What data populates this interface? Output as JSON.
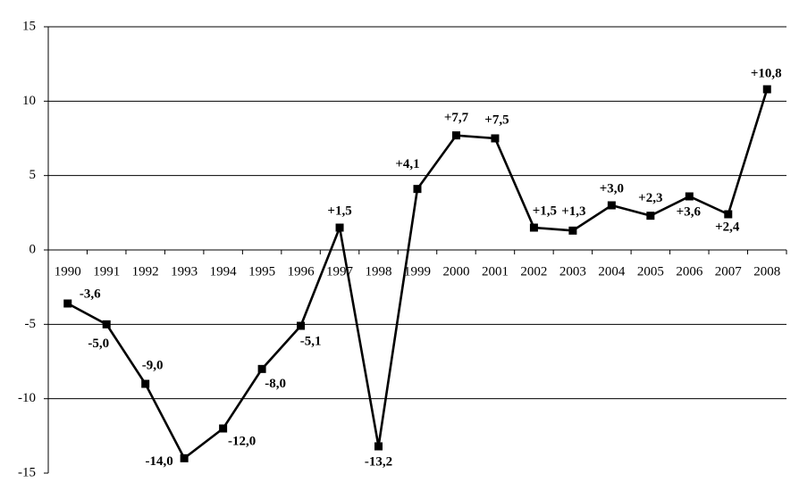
{
  "chart_data": {
    "type": "line",
    "title": "",
    "xlabel": "",
    "ylabel": "",
    "categories": [
      "1990",
      "1991",
      "1992",
      "1993",
      "1994",
      "1995",
      "1996",
      "1997",
      "1998",
      "1999",
      "2000",
      "2001",
      "2002",
      "2003",
      "2004",
      "2005",
      "2006",
      "2007",
      "2008"
    ],
    "series": [
      {
        "values": [
          -3.6,
          -5.0,
          -9.0,
          -14.0,
          -12.0,
          -8.0,
          -5.1,
          1.5,
          -13.2,
          4.1,
          7.7,
          7.5,
          1.5,
          1.3,
          3.0,
          2.3,
          3.6,
          2.4,
          10.8
        ],
        "labels": [
          "-3,6",
          "-5,0",
          "-9,0",
          "-14,0",
          "-12,0",
          "-8,0",
          "-5,1",
          "+1,5",
          "-13,2",
          "+4,1",
          "+7,7",
          "+7,5",
          "+1,5",
          "+1,3",
          "+3,0",
          "+2,3",
          "+3,6",
          "+2,4",
          "+10,8"
        ],
        "marker": "square"
      }
    ],
    "ylim": [
      -15,
      15
    ],
    "yticks": [
      15,
      10,
      5,
      0,
      -5,
      -10,
      -15
    ],
    "ytick_labels": [
      "15",
      "10",
      "5",
      "0",
      "-5",
      "-10",
      "-15"
    ],
    "grid": true,
    "legend": "none",
    "colors": {
      "line": "#000000",
      "marker": "#000000",
      "grid": "#000000",
      "axis": "#000000"
    }
  }
}
